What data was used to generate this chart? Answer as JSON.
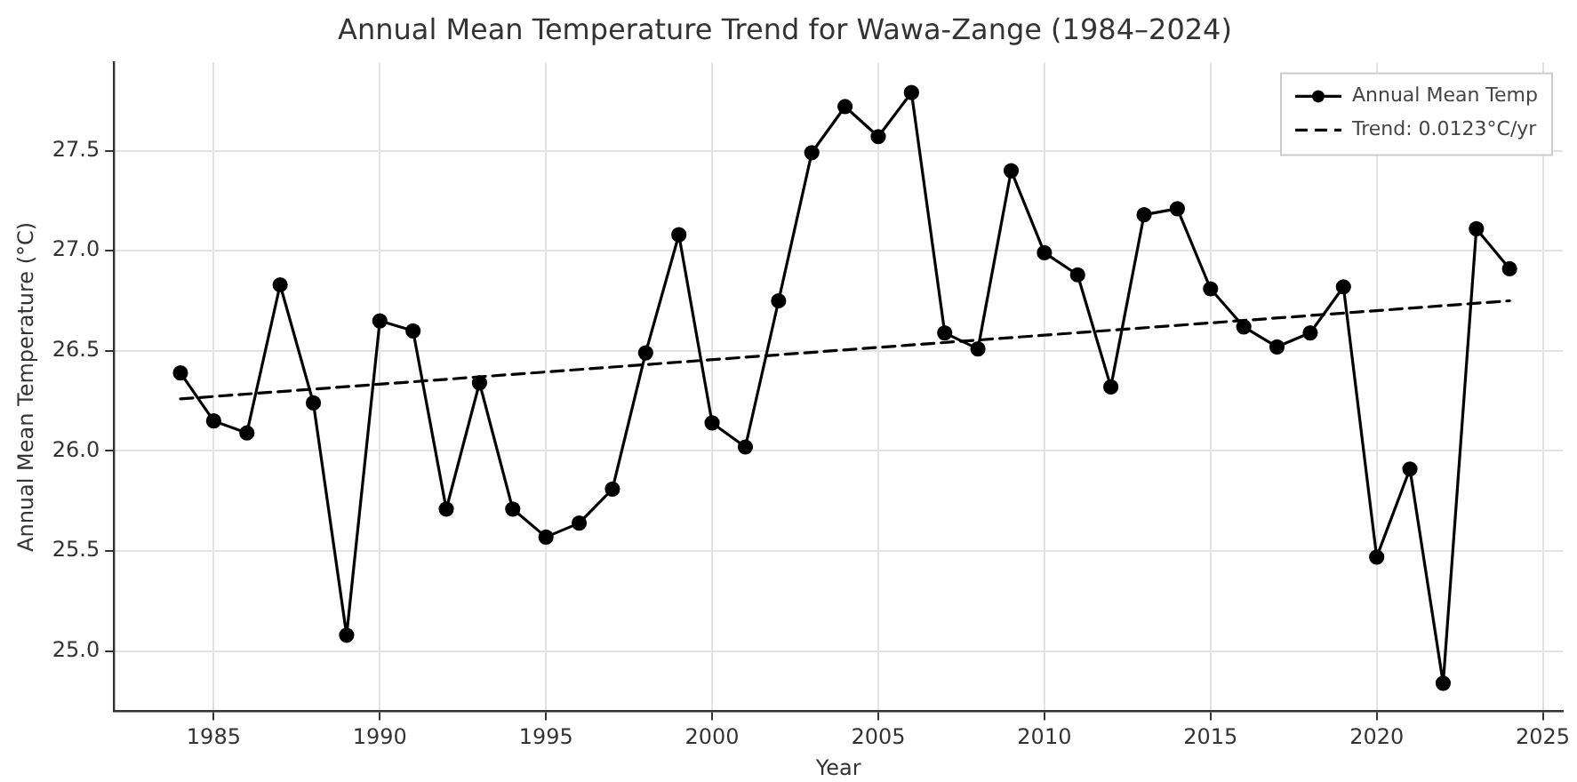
{
  "chart_data": {
    "type": "line",
    "title": "Annual Mean Temperature Trend for Wawa-Zange (1984–2024)",
    "xlabel": "Year",
    "ylabel": "Annual Mean Temperature (°C)",
    "x": [
      1984,
      1985,
      1986,
      1987,
      1988,
      1989,
      1990,
      1991,
      1992,
      1993,
      1994,
      1995,
      1996,
      1997,
      1998,
      1999,
      2000,
      2001,
      2002,
      2003,
      2004,
      2005,
      2006,
      2007,
      2008,
      2009,
      2010,
      2011,
      2012,
      2013,
      2014,
      2015,
      2016,
      2017,
      2018,
      2019,
      2020,
      2021,
      2022,
      2023,
      2024
    ],
    "series": [
      {
        "name": "Annual Mean Temp",
        "color": "#000000",
        "marker": "circle",
        "line_style": "solid",
        "values": [
          26.39,
          26.15,
          26.09,
          26.83,
          26.24,
          25.08,
          26.65,
          26.6,
          25.71,
          26.34,
          25.71,
          25.57,
          25.64,
          25.81,
          26.49,
          27.08,
          26.14,
          26.02,
          26.75,
          27.49,
          27.72,
          27.57,
          27.79,
          26.59,
          26.51,
          27.4,
          26.99,
          26.88,
          26.32,
          27.18,
          27.21,
          26.81,
          26.62,
          26.52,
          26.59,
          26.82,
          25.47,
          25.91,
          24.84,
          27.11,
          26.91
        ]
      },
      {
        "name": "Trend: 0.0123°C/yr",
        "color": "#000000",
        "marker": "none",
        "line_style": "dashed",
        "x": [
          1984,
          2024
        ],
        "values": [
          26.26,
          26.75
        ]
      }
    ],
    "xlim": [
      1982,
      2025.6
    ],
    "xticks": [
      1985,
      1990,
      1995,
      2000,
      2005,
      2010,
      2015,
      2020,
      2025
    ],
    "ylim": [
      24.7,
      27.94
    ],
    "yticks": [
      {
        "value": 25,
        "label": "25.0"
      },
      25.5,
      {
        "value": 26,
        "label": "26.0"
      },
      26.5,
      {
        "value": 27,
        "label": "27.0"
      },
      27.5
    ],
    "grid": true,
    "legend": "top right"
  }
}
